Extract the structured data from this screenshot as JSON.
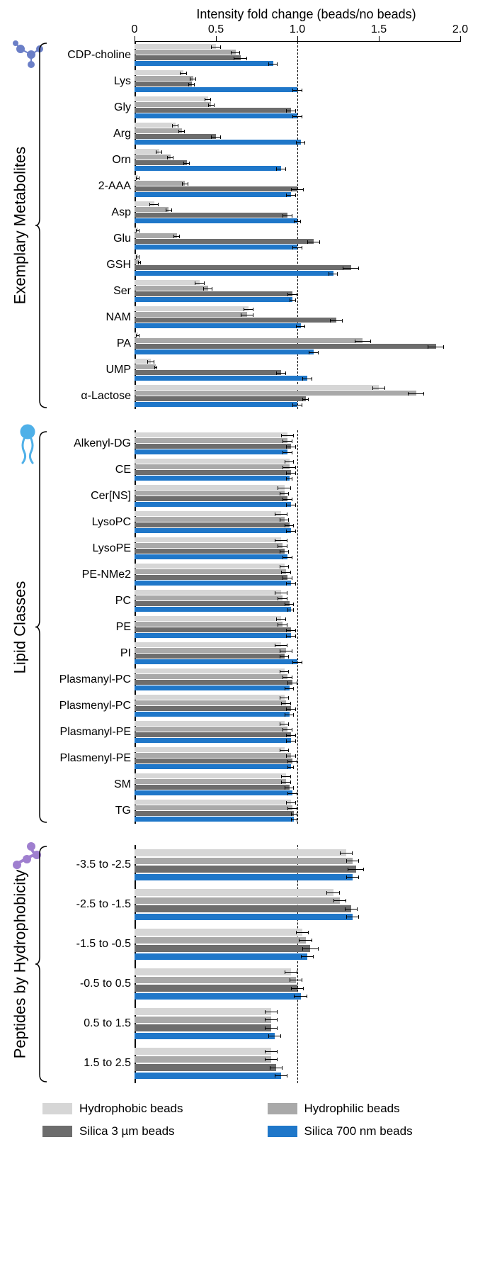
{
  "title": "Intensity fold change (beads/no beads)",
  "xaxis": {
    "min": 0,
    "max": 2.0,
    "ticks": [
      0,
      0.5,
      1.0,
      1.5,
      2.0
    ],
    "ref": 1.0
  },
  "colors": {
    "hydrophobic": "#d6d6d6",
    "silica3": "#6d6d6d",
    "hydrophilic": "#a9a9a9",
    "silica700": "#1f77c9",
    "axis": "#000000",
    "bg": "#ffffff",
    "icon_mol": "#6b7fc7",
    "icon_lip": "#4fb0e8",
    "icon_pep": "#9f7fcf"
  },
  "series_order": [
    "hydrophobic",
    "hydrophilic",
    "silica3",
    "silica700"
  ],
  "legend": [
    {
      "key": "hydrophobic",
      "label": "Hydrophobic beads"
    },
    {
      "key": "hydrophilic",
      "label": "Hydrophilic beads"
    },
    {
      "key": "silica3",
      "label": "Silica 3 µm beads"
    },
    {
      "key": "silica700",
      "label": "Silica 700 nm beads"
    }
  ],
  "sections": [
    {
      "name": "Exemplary Metabolites",
      "icon": "molecule",
      "rows": [
        {
          "label": "CDP-choline",
          "v": {
            "hydrophobic": [
              0.5,
              0.03
            ],
            "hydrophilic": [
              0.62,
              0.03
            ],
            "silica3": [
              0.65,
              0.04
            ],
            "silica700": [
              0.85,
              0.03
            ]
          }
        },
        {
          "label": "Lys",
          "v": {
            "hydrophobic": [
              0.3,
              0.02
            ],
            "hydrophilic": [
              0.36,
              0.02
            ],
            "silica3": [
              0.35,
              0.02
            ],
            "silica700": [
              1.0,
              0.03
            ]
          }
        },
        {
          "label": "Gly",
          "v": {
            "hydrophobic": [
              0.45,
              0.02
            ],
            "hydrophilic": [
              0.47,
              0.02
            ],
            "silica3": [
              0.96,
              0.03
            ],
            "silica700": [
              1.0,
              0.03
            ]
          }
        },
        {
          "label": "Arg",
          "v": {
            "hydrophobic": [
              0.25,
              0.02
            ],
            "hydrophilic": [
              0.29,
              0.02
            ],
            "silica3": [
              0.5,
              0.03
            ],
            "silica700": [
              1.02,
              0.03
            ]
          }
        },
        {
          "label": "Orn",
          "v": {
            "hydrophobic": [
              0.15,
              0.02
            ],
            "hydrophilic": [
              0.22,
              0.02
            ],
            "silica3": [
              0.32,
              0.02
            ],
            "silica700": [
              0.9,
              0.03
            ]
          }
        },
        {
          "label": "2-AAA",
          "v": {
            "hydrophobic": [
              0.02,
              0.01
            ],
            "hydrophilic": [
              0.31,
              0.02
            ],
            "silica3": [
              1.0,
              0.04
            ],
            "silica700": [
              0.96,
              0.03
            ]
          }
        },
        {
          "label": "Asp",
          "v": {
            "hydrophobic": [
              0.12,
              0.03
            ],
            "hydrophilic": [
              0.21,
              0.02
            ],
            "silica3": [
              0.94,
              0.03
            ],
            "silica700": [
              1.0,
              0.02
            ]
          }
        },
        {
          "label": "Glu",
          "v": {
            "hydrophobic": [
              0.02,
              0.01
            ],
            "hydrophilic": [
              0.26,
              0.02
            ],
            "silica3": [
              1.1,
              0.04
            ],
            "silica700": [
              1.0,
              0.03
            ]
          }
        },
        {
          "label": "GSH",
          "v": {
            "hydrophobic": [
              0.02,
              0.01
            ],
            "hydrophilic": [
              0.03,
              0.01
            ],
            "silica3": [
              1.33,
              0.05
            ],
            "silica700": [
              1.22,
              0.03
            ]
          }
        },
        {
          "label": "Ser",
          "v": {
            "hydrophobic": [
              0.4,
              0.03
            ],
            "hydrophilic": [
              0.45,
              0.03
            ],
            "silica3": [
              0.97,
              0.03
            ],
            "silica700": [
              0.97,
              0.02
            ]
          }
        },
        {
          "label": "NAM",
          "v": {
            "hydrophobic": [
              0.7,
              0.03
            ],
            "hydrophilic": [
              0.69,
              0.04
            ],
            "silica3": [
              1.24,
              0.04
            ],
            "silica700": [
              1.02,
              0.03
            ]
          }
        },
        {
          "label": "PA",
          "v": {
            "hydrophobic": [
              0.02,
              0.01
            ],
            "hydrophilic": [
              1.4,
              0.05
            ],
            "silica3": [
              1.85,
              0.05
            ],
            "silica700": [
              1.1,
              0.03
            ]
          }
        },
        {
          "label": "UMP",
          "v": {
            "hydrophobic": [
              0.1,
              0.02
            ],
            "hydrophilic": [
              0.13,
              0.01
            ],
            "silica3": [
              0.9,
              0.03
            ],
            "silica700": [
              1.06,
              0.03
            ]
          }
        },
        {
          "label": "α-Lactose",
          "v": {
            "hydrophobic": [
              1.5,
              0.04
            ],
            "hydrophilic": [
              1.73,
              0.05
            ],
            "silica3": [
              1.05,
              0.02
            ],
            "silica700": [
              1.0,
              0.03
            ]
          }
        }
      ]
    },
    {
      "name": "Lipid Classes",
      "icon": "lipid",
      "rows": [
        {
          "label": "Alkenyl-DG",
          "v": {
            "hydrophobic": [
              0.94,
              0.04
            ],
            "hydrophilic": [
              0.94,
              0.03
            ],
            "silica3": [
              0.96,
              0.03
            ],
            "silica700": [
              0.94,
              0.03
            ]
          }
        },
        {
          "label": "CE",
          "v": {
            "hydrophobic": [
              0.95,
              0.03
            ],
            "hydrophilic": [
              0.95,
              0.04
            ],
            "silica3": [
              0.96,
              0.03
            ],
            "silica700": [
              0.95,
              0.02
            ]
          }
        },
        {
          "label": "Cer[NS]",
          "v": {
            "hydrophobic": [
              0.92,
              0.04
            ],
            "hydrophilic": [
              0.92,
              0.03
            ],
            "silica3": [
              0.94,
              0.03
            ],
            "silica700": [
              0.96,
              0.03
            ]
          }
        },
        {
          "label": "LysoPC",
          "v": {
            "hydrophobic": [
              0.9,
              0.04
            ],
            "hydrophilic": [
              0.92,
              0.03
            ],
            "silica3": [
              0.95,
              0.03
            ],
            "silica700": [
              0.96,
              0.03
            ]
          }
        },
        {
          "label": "LysoPE",
          "v": {
            "hydrophobic": [
              0.9,
              0.04
            ],
            "hydrophilic": [
              0.91,
              0.03
            ],
            "silica3": [
              0.92,
              0.03
            ],
            "silica700": [
              0.94,
              0.03
            ]
          }
        },
        {
          "label": "PE-NMe2",
          "v": {
            "hydrophobic": [
              0.92,
              0.03
            ],
            "hydrophilic": [
              0.93,
              0.03
            ],
            "silica3": [
              0.94,
              0.03
            ],
            "silica700": [
              0.96,
              0.03
            ]
          }
        },
        {
          "label": "PC",
          "v": {
            "hydrophobic": [
              0.9,
              0.04
            ],
            "hydrophilic": [
              0.91,
              0.03
            ],
            "silica3": [
              0.95,
              0.03
            ],
            "silica700": [
              0.96,
              0.02
            ]
          }
        },
        {
          "label": "PE",
          "v": {
            "hydrophobic": [
              0.9,
              0.03
            ],
            "hydrophilic": [
              0.91,
              0.03
            ],
            "silica3": [
              0.96,
              0.03
            ],
            "silica700": [
              0.96,
              0.03
            ]
          }
        },
        {
          "label": "PI",
          "v": {
            "hydrophobic": [
              0.9,
              0.04
            ],
            "hydrophilic": [
              0.93,
              0.04
            ],
            "silica3": [
              0.92,
              0.03
            ],
            "silica700": [
              1.0,
              0.03
            ]
          }
        },
        {
          "label": "Plasmanyl-PC",
          "v": {
            "hydrophobic": [
              0.92,
              0.03
            ],
            "hydrophilic": [
              0.94,
              0.03
            ],
            "silica3": [
              0.97,
              0.03
            ],
            "silica700": [
              0.95,
              0.03
            ]
          }
        },
        {
          "label": "Plasmenyl-PC",
          "v": {
            "hydrophobic": [
              0.92,
              0.03
            ],
            "hydrophilic": [
              0.93,
              0.03
            ],
            "silica3": [
              0.96,
              0.03
            ],
            "silica700": [
              0.95,
              0.03
            ]
          }
        },
        {
          "label": "Plasmanyl-PE",
          "v": {
            "hydrophobic": [
              0.92,
              0.03
            ],
            "hydrophilic": [
              0.94,
              0.03
            ],
            "silica3": [
              0.96,
              0.03
            ],
            "silica700": [
              0.96,
              0.03
            ]
          }
        },
        {
          "label": "Plasmenyl-PE",
          "v": {
            "hydrophobic": [
              0.92,
              0.03
            ],
            "hydrophilic": [
              0.96,
              0.03
            ],
            "silica3": [
              0.97,
              0.03
            ],
            "silica700": [
              0.96,
              0.02
            ]
          }
        },
        {
          "label": "SM",
          "v": {
            "hydrophobic": [
              0.93,
              0.03
            ],
            "hydrophilic": [
              0.93,
              0.03
            ],
            "silica3": [
              0.95,
              0.03
            ],
            "silica700": [
              0.97,
              0.03
            ]
          }
        },
        {
          "label": "TG",
          "v": {
            "hydrophobic": [
              0.96,
              0.03
            ],
            "hydrophilic": [
              0.97,
              0.03
            ],
            "silica3": [
              0.98,
              0.02
            ],
            "silica700": [
              0.98,
              0.02
            ]
          }
        }
      ]
    },
    {
      "name": "Peptides by Hydrophobicity",
      "icon": "peptide",
      "rows": [
        {
          "label": "-3.5 to -2.5",
          "v": {
            "hydrophobic": [
              1.3,
              0.04
            ],
            "hydrophilic": [
              1.34,
              0.04
            ],
            "silica3": [
              1.36,
              0.05
            ],
            "silica700": [
              1.34,
              0.04
            ]
          }
        },
        {
          "label": "-2.5 to -1.5",
          "v": {
            "hydrophobic": [
              1.22,
              0.04
            ],
            "hydrophilic": [
              1.26,
              0.04
            ],
            "silica3": [
              1.33,
              0.04
            ],
            "silica700": [
              1.34,
              0.04
            ]
          }
        },
        {
          "label": "-1.5 to -0.5",
          "v": {
            "hydrophobic": [
              1.03,
              0.04
            ],
            "hydrophilic": [
              1.05,
              0.04
            ],
            "silica3": [
              1.08,
              0.05
            ],
            "silica700": [
              1.06,
              0.04
            ]
          }
        },
        {
          "label": "-0.5 to 0.5",
          "v": {
            "hydrophobic": [
              0.96,
              0.04
            ],
            "hydrophilic": [
              0.99,
              0.04
            ],
            "silica3": [
              1.0,
              0.04
            ],
            "silica700": [
              1.02,
              0.04
            ]
          }
        },
        {
          "label": "0.5 to 1.5",
          "v": {
            "hydrophobic": [
              0.84,
              0.04
            ],
            "hydrophilic": [
              0.84,
              0.04
            ],
            "silica3": [
              0.84,
              0.04
            ],
            "silica700": [
              0.86,
              0.04
            ]
          }
        },
        {
          "label": "1.5 to 2.5",
          "v": {
            "hydrophobic": [
              0.84,
              0.04
            ],
            "hydrophilic": [
              0.84,
              0.04
            ],
            "silica3": [
              0.87,
              0.04
            ],
            "silica700": [
              0.9,
              0.04
            ]
          }
        }
      ]
    }
  ]
}
